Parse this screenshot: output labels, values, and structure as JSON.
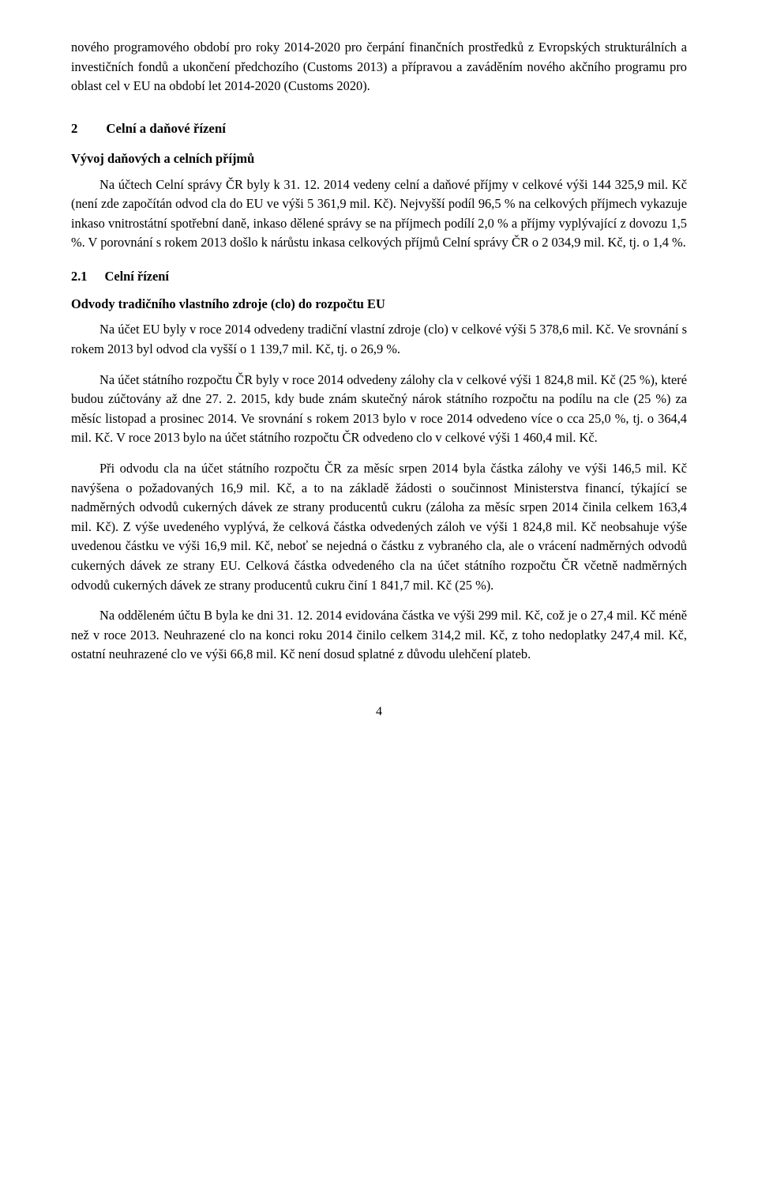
{
  "para_top": "nového programového období pro roky 2014-2020 pro čerpání finančních prostředků z Evropských strukturálních a investičních fondů a ukončení předchozího (Customs 2013) a přípravou a zaváděním nového akčního programu pro oblast cel v EU na období let 2014-2020 (Customs 2020).",
  "sec2_num": "2",
  "sec2_title": "Celní a daňové řízení",
  "sec2_sub1": "Vývoj daňových a celních příjmů",
  "p1": "Na účtech Celní správy ČR byly k 31. 12. 2014 vedeny celní a daňové příjmy v celkové výši 144 325,9 mil. Kč (není zde započítán odvod cla do EU ve výši 5 361,9 mil. Kč). Nejvyšší podíl 96,5 % na celkových příjmech vykazuje inkaso vnitrostátní spotřební daně, inkaso dělené správy se na příjmech podílí 2,0 % a příjmy vyplývající z dovozu 1,5 %. V porovnání s rokem 2013 došlo k nárůstu inkasa celkových příjmů Celní správy ČR o 2 034,9 mil. Kč, tj. o 1,4 %.",
  "sec21_num": "2.1",
  "sec21_title": "Celní řízení",
  "odvody_title": "Odvody tradičního vlastního zdroje (clo) do rozpočtu EU",
  "p2": "Na účet EU byly v roce 2014 odvedeny tradiční vlastní zdroje (clo) v celkové výši 5 378,6 mil. Kč. Ve srovnání s rokem 2013 byl odvod cla vyšší o 1 139,7 mil. Kč, tj. o 26,9 %.",
  "p3": "Na účet státního rozpočtu ČR byly v roce 2014 odvedeny zálohy cla v celkové výši 1 824,8 mil. Kč (25 %), které budou zúčtovány až dne 27. 2. 2015, kdy bude znám skutečný nárok státního rozpočtu na podílu na cle (25 %) za měsíc listopad a prosinec 2014. Ve srovnání s rokem 2013 bylo v roce 2014 odvedeno více o cca 25,0 %, tj. o 364,4 mil. Kč. V roce 2013 bylo na účet státního rozpočtu ČR odvedeno clo v celkové výši 1 460,4 mil. Kč.",
  "p4": "Při odvodu cla na účet státního rozpočtu ČR za měsíc srpen 2014 byla částka zálohy ve výši 146,5 mil. Kč navýšena o požadovaných 16,9 mil. Kč, a to na základě žádosti o součinnost Ministerstva financí, týkající se nadměrných odvodů cukerných dávek ze strany producentů cukru (záloha za měsíc srpen 2014 činila celkem 163,4 mil. Kč). Z výše uvedeného vyplývá, že celková částka odvedených záloh ve výši 1 824,8 mil. Kč neobsahuje výše uvedenou částku ve výši 16,9 mil. Kč, neboť se nejedná o částku z vybraného cla, ale o vrácení nadměrných odvodů cukerných dávek ze strany EU. Celková částka odvedeného cla na účet státního rozpočtu ČR včetně nadměrných odvodů cukerných dávek ze strany producentů cukru činí 1 841,7 mil. Kč (25 %).",
  "p5": "Na odděleném účtu B byla ke dni 31. 12. 2014 evidována částka ve výši 299 mil. Kč, což je o 27,4 mil. Kč méně než v roce 2013. Neuhrazené clo na konci roku 2014 činilo celkem 314,2 mil. Kč, z toho nedoplatky 247,4 mil. Kč, ostatní neuhrazené clo ve výši 66,8 mil. Kč není dosud splatné z důvodu ulehčení plateb.",
  "page_number": "4"
}
